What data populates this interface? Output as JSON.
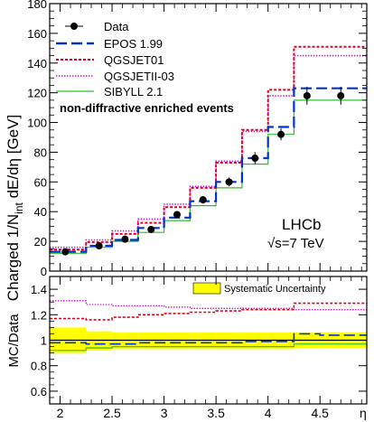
{
  "chart_data": [
    {
      "type": "step-line",
      "ylabel_main": "Charged 1/N",
      "ylabel_sub": "int",
      "ylabel_rest": " dE/dη [GeV]",
      "ylim": [
        0,
        180
      ],
      "xlim": [
        1.9,
        4.95
      ],
      "x_edges": [
        1.9,
        2.25,
        2.5,
        2.75,
        3.0,
        3.25,
        3.5,
        3.75,
        4.0,
        4.25,
        4.5,
        4.95
      ],
      "y_ticks": [
        0,
        20,
        40,
        60,
        80,
        100,
        120,
        140,
        160,
        180
      ],
      "legend": {
        "position": "top-left",
        "entries": [
          {
            "label": "Data",
            "key": "data"
          },
          {
            "label": "EPOS 1.99",
            "key": "epos"
          },
          {
            "label": "QGSJET01",
            "key": "qgsjet01"
          },
          {
            "label": "QGSJETII-03",
            "key": "qgsjetii"
          },
          {
            "label": "SIBYLL 2.1",
            "key": "sibyll"
          }
        ]
      },
      "annotation": "non-diffractive enriched events",
      "experiment_label": "LHCb",
      "energy_label": "√s=7 TeV",
      "data_points": {
        "x": [
          2.05,
          2.375,
          2.625,
          2.875,
          3.125,
          3.375,
          3.625,
          3.875,
          4.125,
          4.375,
          4.7
        ],
        "y": [
          13,
          17,
          21.5,
          28,
          38,
          48,
          60,
          76,
          92,
          118,
          118
        ],
        "yerr": [
          1.2,
          1.2,
          1.5,
          1.5,
          2,
          2.5,
          3,
          4,
          4,
          6,
          6
        ]
      },
      "series": [
        {
          "name": "EPOS 1.99",
          "key": "epos",
          "color": "#0033cc",
          "dash": "12,5",
          "width": 2.2,
          "values": [
            13,
            17,
            21,
            29,
            36,
            47,
            60,
            76,
            97,
            123,
            123
          ]
        },
        {
          "name": "QGSJET01",
          "key": "qgsjet01",
          "color": "#e0001e",
          "dash": "3,2",
          "width": 2.0,
          "values": [
            14.5,
            19.5,
            25,
            32.5,
            43,
            56,
            73,
            95,
            122,
            151,
            151
          ]
        },
        {
          "name": "QGSJETII-03",
          "key": "qgsjetii",
          "color": "#d21ae0",
          "dash": "1.5,1.5",
          "width": 1.6,
          "values": [
            16,
            21,
            27,
            35,
            45,
            57,
            74,
            94,
            118,
            145,
            145
          ]
        },
        {
          "name": "SIBYLL 2.1",
          "key": "sibyll",
          "color": "#33bb33",
          "dash": "",
          "width": 1.2,
          "values": [
            12,
            16,
            20,
            26,
            34,
            44,
            56,
            72,
            92,
            115,
            115
          ]
        }
      ]
    },
    {
      "type": "step-line",
      "ylabel": "MC/Data",
      "xlabel": "η",
      "ylim": [
        0.5,
        1.5
      ],
      "xlim": [
        1.9,
        4.95
      ],
      "x_edges": [
        1.9,
        2.25,
        2.5,
        2.75,
        3.0,
        3.25,
        3.5,
        3.75,
        4.0,
        4.25,
        4.5,
        4.95
      ],
      "y_ticks": [
        0.6,
        0.8,
        1.0,
        1.2,
        1.4
      ],
      "y_tick_labels": [
        "0.6",
        "0.8",
        "1",
        "1.2",
        "1.4"
      ],
      "x_ticks": [
        2,
        2.5,
        3,
        3.5,
        4,
        4.5
      ],
      "x_tick_labels": [
        "2",
        "2.5",
        "3",
        "3.5",
        "4",
        "4.5"
      ],
      "legend": {
        "position": "top-right",
        "entries": [
          {
            "label": "Systematic Uncertainty",
            "key": "band"
          }
        ]
      },
      "band": {
        "color": "#ffff00",
        "lower": [
          0.9,
          0.92,
          0.93,
          0.93,
          0.93,
          0.93,
          0.93,
          0.93,
          0.93,
          0.94,
          0.94
        ],
        "upper": [
          1.1,
          1.07,
          1.06,
          1.06,
          1.06,
          1.06,
          1.06,
          1.06,
          1.06,
          1.06,
          1.06
        ]
      },
      "series": [
        {
          "name": "EPOS 1.99",
          "key": "epos",
          "color": "#0033cc",
          "dash": "12,5",
          "width": 1.6,
          "values": [
            0.98,
            0.97,
            0.97,
            0.98,
            0.98,
            0.98,
            0.98,
            0.99,
            0.99,
            1.05,
            1.04
          ]
        },
        {
          "name": "QGSJET01",
          "key": "qgsjet01",
          "color": "#e0001e",
          "dash": "3,2",
          "width": 1.6,
          "values": [
            1.17,
            1.16,
            1.18,
            1.2,
            1.21,
            1.22,
            1.23,
            1.24,
            1.24,
            1.29,
            1.29
          ]
        },
        {
          "name": "QGSJETII-03",
          "key": "qgsjetii",
          "color": "#d21ae0",
          "dash": "1.5,1.5",
          "width": 1.3,
          "values": [
            1.31,
            1.28,
            1.27,
            1.27,
            1.26,
            1.25,
            1.25,
            1.25,
            1.25,
            1.24,
            1.24
          ]
        },
        {
          "name": "SIBYLL 2.1",
          "key": "sibyll",
          "color": "#33bb33",
          "dash": "",
          "width": 1.2,
          "values": [
            0.92,
            0.94,
            0.95,
            0.95,
            0.95,
            0.95,
            0.95,
            0.95,
            0.95,
            0.97,
            0.97
          ]
        }
      ]
    }
  ]
}
